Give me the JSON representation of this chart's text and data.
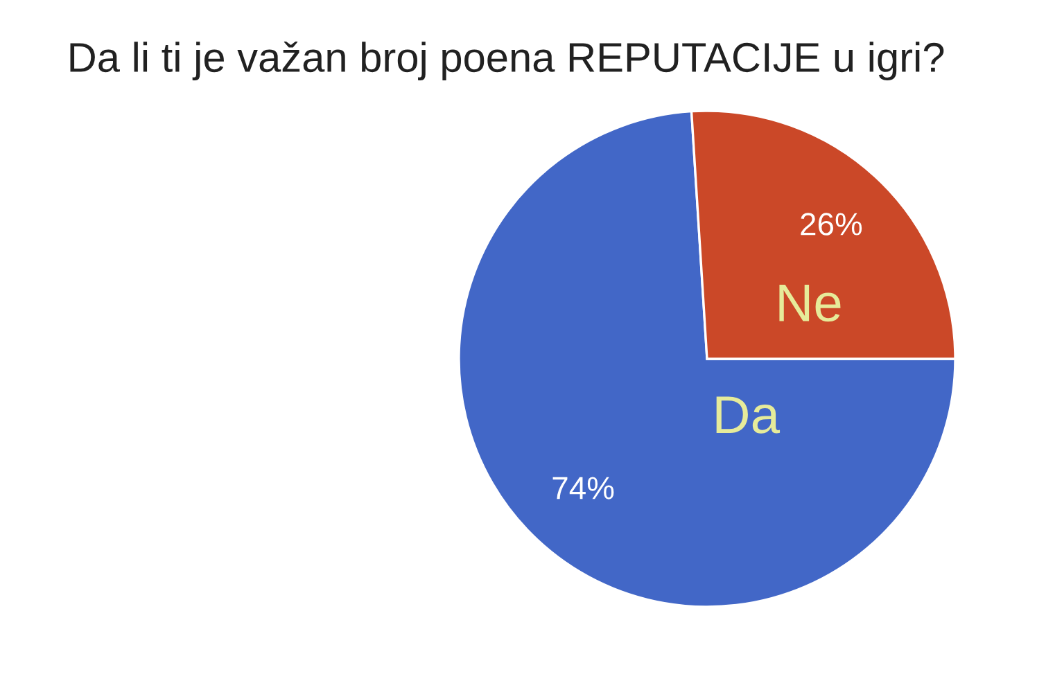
{
  "chart_data": {
    "type": "pie",
    "title": "Da li ti je važan broj poena REPUTACIJE u igri?",
    "categories": [
      "Da",
      "Ne"
    ],
    "values": [
      74,
      26
    ],
    "colors": [
      "#4267c7",
      "#cb4828"
    ],
    "value_labels": [
      "74%",
      "26%"
    ]
  }
}
